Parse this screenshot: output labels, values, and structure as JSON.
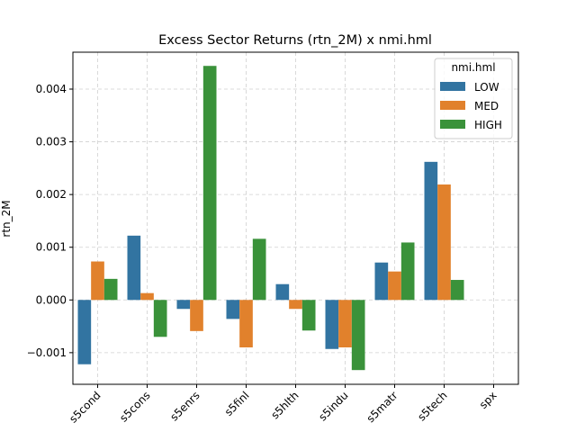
{
  "chart_data": {
    "type": "bar",
    "title": "Excess Sector Returns (rtn_2M) x nmi.hml",
    "xlabel": "",
    "ylabel": "rtn_2M",
    "categories": [
      "s5cond",
      "s5cons",
      "s5enrs",
      "s5finl",
      "s5hlth",
      "s5indu",
      "s5matr",
      "s5tech",
      "spx"
    ],
    "series": [
      {
        "name": "LOW",
        "color": "#3274a1",
        "values": [
          -0.00122,
          0.00122,
          -0.00017,
          -0.00036,
          0.0003,
          -0.00093,
          0.00071,
          0.00262,
          null
        ]
      },
      {
        "name": "MED",
        "color": "#e1812c",
        "values": [
          0.00073,
          0.00013,
          -0.00059,
          -0.0009,
          -0.00017,
          -0.0009,
          0.00054,
          0.00219,
          null
        ]
      },
      {
        "name": "HIGH",
        "color": "#3a923a",
        "values": [
          0.0004,
          -0.0007,
          0.00444,
          0.00116,
          -0.00058,
          -0.00133,
          0.00109,
          0.00038,
          null
        ]
      }
    ],
    "ylim": [
      -0.0016,
      0.0047
    ],
    "yticks": [
      -0.001,
      0.0,
      0.001,
      0.002,
      0.003,
      0.004
    ],
    "ytick_labels": [
      "−0.001",
      "0.000",
      "0.001",
      "0.002",
      "0.003",
      "0.004"
    ],
    "grid": true,
    "legend": {
      "title": "nmi.hml",
      "placement": "top-right"
    }
  }
}
